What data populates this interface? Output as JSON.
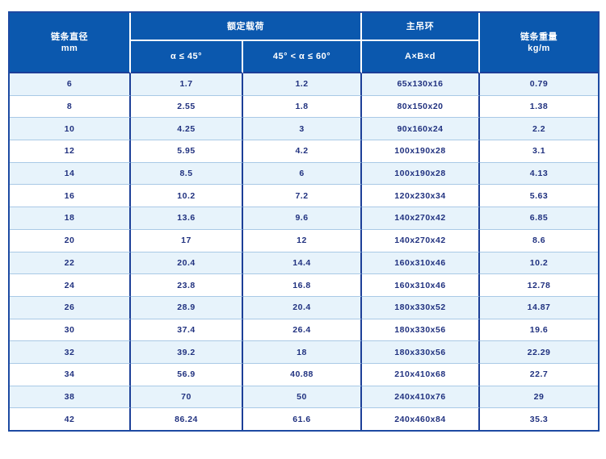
{
  "theme": {
    "header_bg": "#0b58ae",
    "header_text": "#ffffff",
    "border_dark": "#1c3f98",
    "outer_border": "#1d4aa2",
    "row_divider": "#a9c9e6",
    "stripe_bg": "#e7f3fb",
    "row_bg": "#ffffff",
    "data_text": "#20317f",
    "page_bg": "#ffffff"
  },
  "table": {
    "header": {
      "diameter_title": "链条直径",
      "diameter_unit": "mm",
      "load_group": "额定载荷",
      "load_sub1": "α ≤ 45°",
      "load_sub2": "45° < α ≤ 60°",
      "ring_title": "主吊环",
      "ring_sub": "A×B×d",
      "weight_title": "链条重量",
      "weight_unit": "kg/m"
    },
    "rows": [
      {
        "diameter": "6",
        "load_a45": "1.7",
        "load_a60": "1.2",
        "ring": "65x130x16",
        "weight": "0.79"
      },
      {
        "diameter": "8",
        "load_a45": "2.55",
        "load_a60": "1.8",
        "ring": "80x150x20",
        "weight": "1.38"
      },
      {
        "diameter": "10",
        "load_a45": "4.25",
        "load_a60": "3",
        "ring": "90x160x24",
        "weight": "2.2"
      },
      {
        "diameter": "12",
        "load_a45": "5.95",
        "load_a60": "4.2",
        "ring": "100x190x28",
        "weight": "3.1"
      },
      {
        "diameter": "14",
        "load_a45": "8.5",
        "load_a60": "6",
        "ring": "100x190x28",
        "weight": "4.13"
      },
      {
        "diameter": "16",
        "load_a45": "10.2",
        "load_a60": "7.2",
        "ring": "120x230x34",
        "weight": "5.63"
      },
      {
        "diameter": "18",
        "load_a45": "13.6",
        "load_a60": "9.6",
        "ring": "140x270x42",
        "weight": "6.85"
      },
      {
        "diameter": "20",
        "load_a45": "17",
        "load_a60": "12",
        "ring": "140x270x42",
        "weight": "8.6"
      },
      {
        "diameter": "22",
        "load_a45": "20.4",
        "load_a60": "14.4",
        "ring": "160x310x46",
        "weight": "10.2"
      },
      {
        "diameter": "24",
        "load_a45": "23.8",
        "load_a60": "16.8",
        "ring": "160x310x46",
        "weight": "12.78"
      },
      {
        "diameter": "26",
        "load_a45": "28.9",
        "load_a60": "20.4",
        "ring": "180x330x52",
        "weight": "14.87"
      },
      {
        "diameter": "30",
        "load_a45": "37.4",
        "load_a60": "26.4",
        "ring": "180x330x56",
        "weight": "19.6"
      },
      {
        "diameter": "32",
        "load_a45": "39.2",
        "load_a60": "18",
        "ring": "180x330x56",
        "weight": "22.29"
      },
      {
        "diameter": "34",
        "load_a45": "56.9",
        "load_a60": "40.88",
        "ring": "210x410x68",
        "weight": "22.7"
      },
      {
        "diameter": "38",
        "load_a45": "70",
        "load_a60": "50",
        "ring": "240x410x76",
        "weight": "29"
      },
      {
        "diameter": "42",
        "load_a45": "86.24",
        "load_a60": "61.6",
        "ring": "240x460x84",
        "weight": "35.3"
      }
    ]
  }
}
